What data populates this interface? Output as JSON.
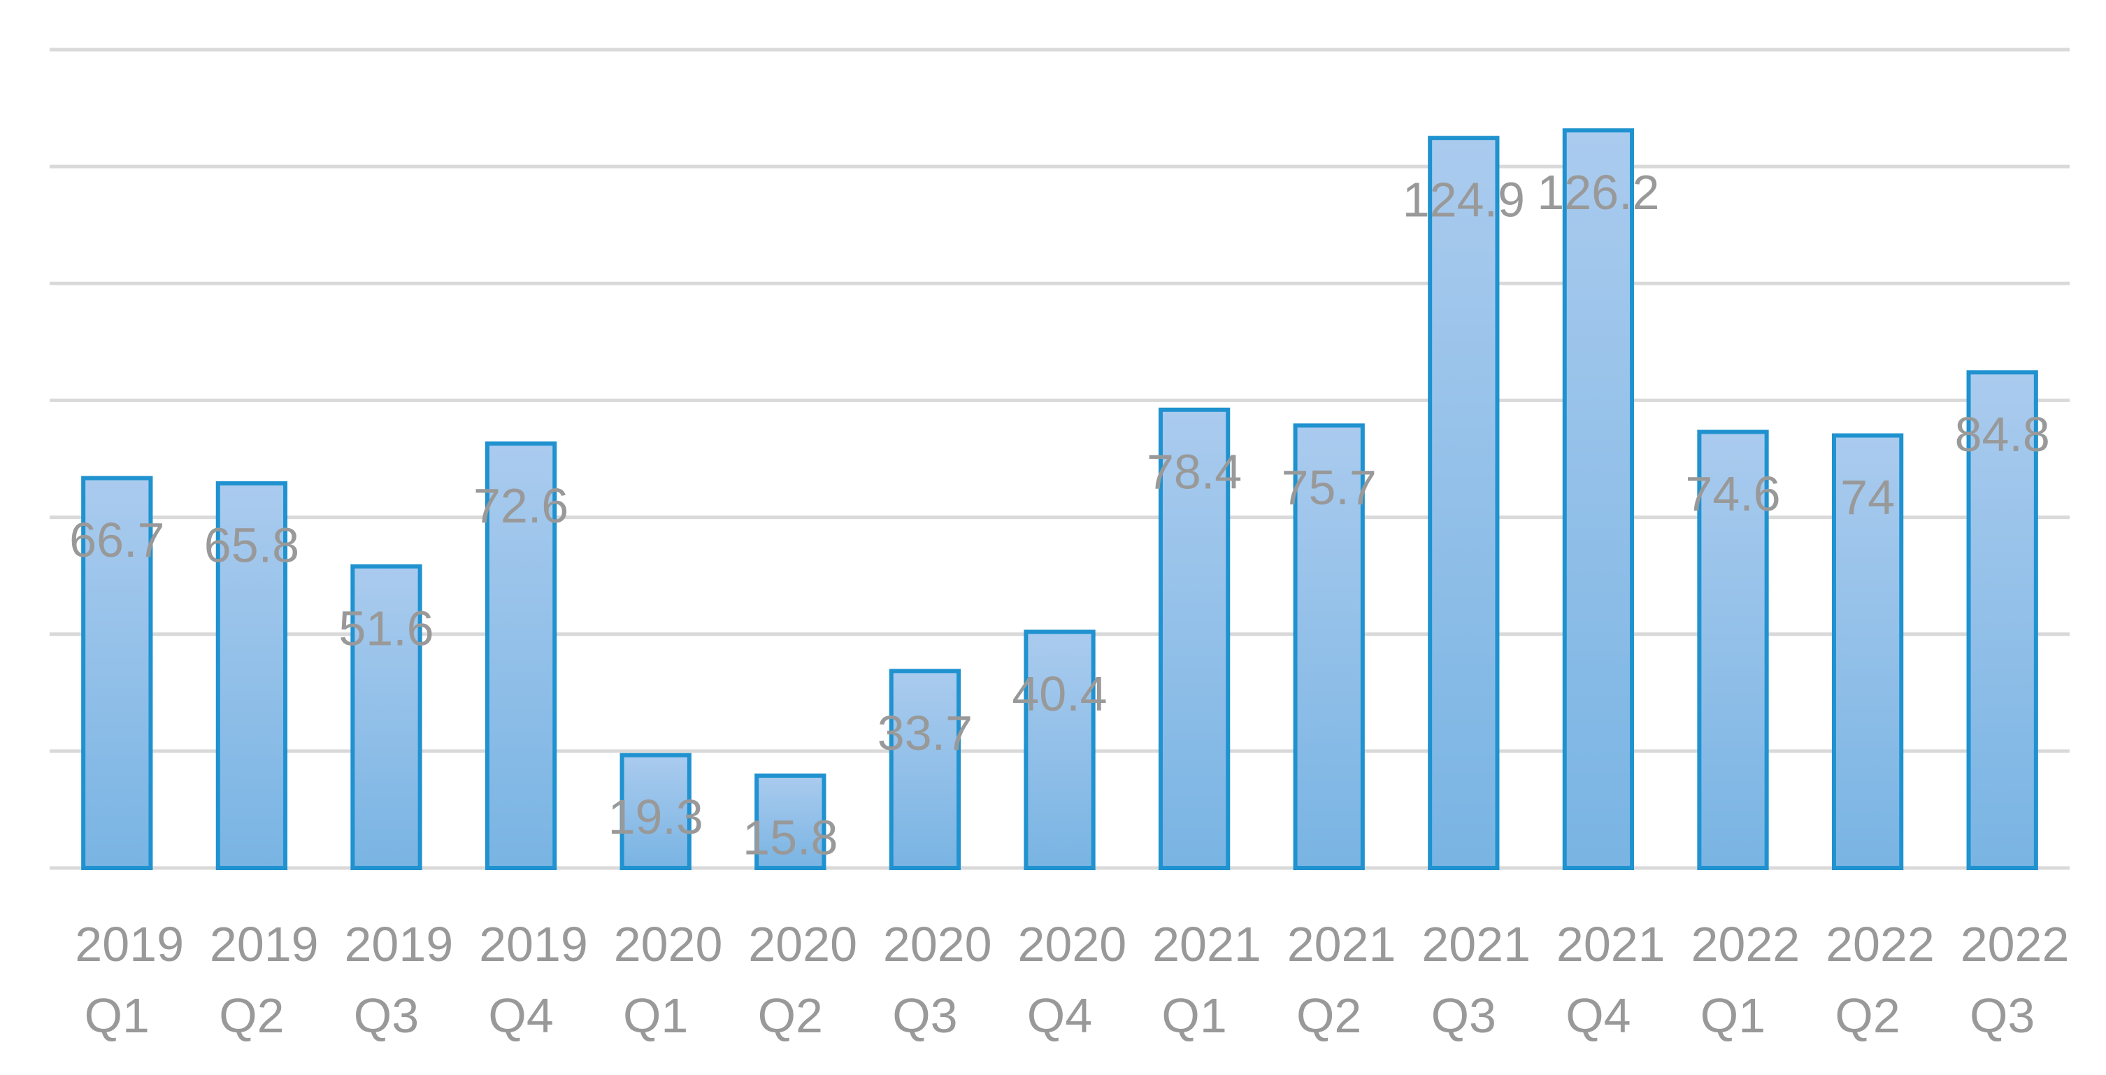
{
  "chart_data": {
    "type": "bar",
    "categories": [
      "2019 Q1",
      "2019 Q2",
      "2019 Q3",
      "2019 Q4",
      "2020 Q1",
      "2020 Q2",
      "2020 Q3",
      "2020 Q4",
      "2021 Q1",
      "2021 Q2",
      "2021 Q3",
      "2021 Q4",
      "2022 Q1",
      "2022 Q2",
      "2022 Q3"
    ],
    "values": [
      66.7,
      65.8,
      51.6,
      72.6,
      19.3,
      15.8,
      33.7,
      40.4,
      78.4,
      75.7,
      124.9,
      126.2,
      74.6,
      74,
      84.8
    ],
    "color": "#1f92cf",
    "ylim": [
      0,
      140
    ],
    "yticks": [
      0,
      20,
      40,
      60,
      80,
      100,
      120,
      140
    ],
    "grid": true
  }
}
